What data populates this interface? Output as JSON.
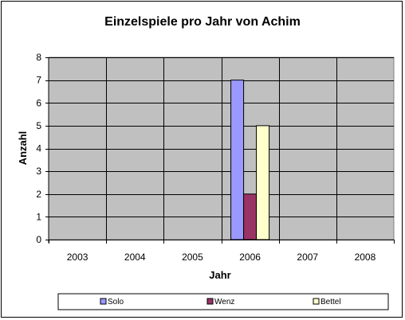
{
  "chart_data": {
    "type": "bar",
    "title": "Einzelspiele pro Jahr von Achim",
    "xlabel": "Jahr",
    "ylabel": "Anzahl",
    "categories": [
      "2003",
      "2004",
      "2005",
      "2006",
      "2007",
      "2008"
    ],
    "series": [
      {
        "name": "Solo",
        "values": [
          0,
          0,
          0,
          7,
          0,
          0
        ],
        "color": "#9999ff"
      },
      {
        "name": "Wenz",
        "values": [
          0,
          0,
          0,
          2,
          0,
          0
        ],
        "color": "#993366"
      },
      {
        "name": "Bettel",
        "values": [
          0,
          0,
          0,
          5,
          0,
          0
        ],
        "color": "#ffffcc"
      }
    ],
    "ylim": [
      0,
      8
    ],
    "yticks": [
      "0",
      "1",
      "2",
      "3",
      "4",
      "5",
      "6",
      "7",
      "8"
    ],
    "grid": true,
    "plot_background": "#c0c0c0",
    "legend_position": "bottom"
  }
}
